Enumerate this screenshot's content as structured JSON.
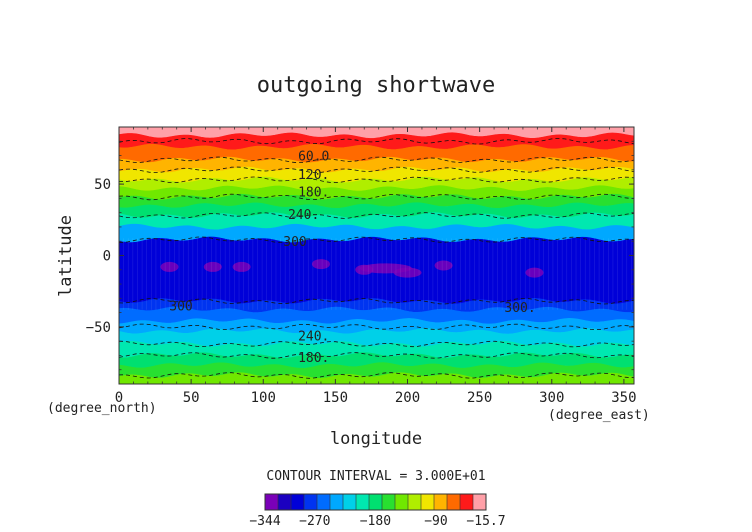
{
  "chart_data": {
    "type": "heatmap",
    "title": "outgoing shortwave",
    "xlabel": "longitude",
    "ylabel": "latitude",
    "x_unit": "(degree_east)",
    "y_unit": "(degree_north)",
    "xlim": [
      0,
      357
    ],
    "ylim": [
      -90,
      90
    ],
    "xticks": [
      "0",
      "50",
      "100",
      "150",
      "200",
      "250",
      "300",
      "350"
    ],
    "yticks": [
      "50",
      "0",
      "−50"
    ],
    "ytick_values": [
      50,
      0,
      -50
    ],
    "contour_interval_text": "CONTOUR INTERVAL = 3.000E+01",
    "colorbar": {
      "min": -344,
      "max": -15.7,
      "tick_labels": [
        "−344",
        "−270",
        "−180",
        "−90",
        "−15.7"
      ],
      "tick_values": [
        -344,
        -270,
        -180,
        -90,
        -15.7
      ],
      "colors": [
        "#7a00b8",
        "#1b00c0",
        "#0000d8",
        "#0034f0",
        "#006cff",
        "#00a8ff",
        "#00d0e8",
        "#00e8b0",
        "#00e070",
        "#28e030",
        "#70e800",
        "#b0ee00",
        "#f0e600",
        "#ffb400",
        "#ff6a00",
        "#ff1a1a",
        "#ffa0a8"
      ]
    },
    "zonal_bands": [
      {
        "lat_top": 90,
        "lat_bottom": 84,
        "color": "#ffa0a8"
      },
      {
        "lat_top": 84,
        "lat_bottom": 76,
        "color": "#ff1a1a"
      },
      {
        "lat_top": 76,
        "lat_bottom": 67,
        "color": "#ff6a00"
      },
      {
        "lat_top": 67,
        "lat_bottom": 60,
        "color": "#ffb400"
      },
      {
        "lat_top": 60,
        "lat_bottom": 53,
        "color": "#f0e600"
      },
      {
        "lat_top": 53,
        "lat_bottom": 47,
        "color": "#b0ee00"
      },
      {
        "lat_top": 47,
        "lat_bottom": 41,
        "color": "#70e800"
      },
      {
        "lat_top": 41,
        "lat_bottom": 35,
        "color": "#28e030"
      },
      {
        "lat_top": 35,
        "lat_bottom": 28,
        "color": "#00e070"
      },
      {
        "lat_top": 28,
        "lat_bottom": 20,
        "color": "#00e8b0"
      },
      {
        "lat_top": 20,
        "lat_bottom": 11,
        "color": "#00a8ff"
      },
      {
        "lat_top": 11,
        "lat_bottom": -32,
        "color": "#0000d8"
      },
      {
        "lat_top": -32,
        "lat_bottom": -38,
        "color": "#0034f0"
      },
      {
        "lat_top": -38,
        "lat_bottom": -46,
        "color": "#006cff"
      },
      {
        "lat_top": -46,
        "lat_bottom": -53,
        "color": "#00a8ff"
      },
      {
        "lat_top": -53,
        "lat_bottom": -62,
        "color": "#00d0e8"
      },
      {
        "lat_top": -62,
        "lat_bottom": -70,
        "color": "#00e8b0"
      },
      {
        "lat_top": -70,
        "lat_bottom": -77,
        "color": "#00e070"
      },
      {
        "lat_top": -77,
        "lat_bottom": -84,
        "color": "#28e030"
      },
      {
        "lat_top": -84,
        "lat_bottom": -90,
        "color": "#70e800"
      }
    ],
    "minimum_patches": [
      {
        "lon": 35,
        "lat": -8,
        "color": "#7a00b8"
      },
      {
        "lon": 65,
        "lat": -8,
        "color": "#7a00b8"
      },
      {
        "lon": 85,
        "lat": -8,
        "color": "#7a00b8"
      },
      {
        "lon": 140,
        "lat": -6,
        "color": "#7a00b8"
      },
      {
        "lon": 170,
        "lat": -10,
        "color": "#7a00b8"
      },
      {
        "lon": 185,
        "lat": -9,
        "color": "#7a00b8"
      },
      {
        "lon": 200,
        "lat": -12,
        "color": "#7a00b8"
      },
      {
        "lon": 225,
        "lat": -7,
        "color": "#7a00b8"
      },
      {
        "lon": 288,
        "lat": -12,
        "color": "#7a00b8"
      }
    ],
    "contour_lines": [
      {
        "lat": 80,
        "label": ""
      },
      {
        "lat": 67,
        "label": ""
      },
      {
        "lat": 60,
        "label": ""
      },
      {
        "lat": 53,
        "label": ""
      },
      {
        "lat": 41,
        "label": ""
      },
      {
        "lat": 28,
        "label": ""
      },
      {
        "lat": 11,
        "label": ""
      },
      {
        "lat": -32,
        "label": ""
      },
      {
        "lat": -50,
        "label": ""
      },
      {
        "lat": -62,
        "label": ""
      },
      {
        "lat": -70,
        "label": ""
      },
      {
        "lat": -84,
        "label": ""
      }
    ],
    "contour_labels": [
      {
        "text": "60.0",
        "lon": 135,
        "lat": 70
      },
      {
        "text": "120.",
        "lon": 135,
        "lat": 57
      },
      {
        "text": "180.",
        "lon": 135,
        "lat": 45
      },
      {
        "text": "240.",
        "lon": 128,
        "lat": 29
      },
      {
        "text": "300",
        "lon": 122,
        "lat": 10
      },
      {
        "text": "300",
        "lon": 43,
        "lat": -35
      },
      {
        "text": "300.",
        "lon": 278,
        "lat": -36
      },
      {
        "text": "240.",
        "lon": 135,
        "lat": -56
      },
      {
        "text": "180.",
        "lon": 135,
        "lat": -71
      }
    ]
  }
}
